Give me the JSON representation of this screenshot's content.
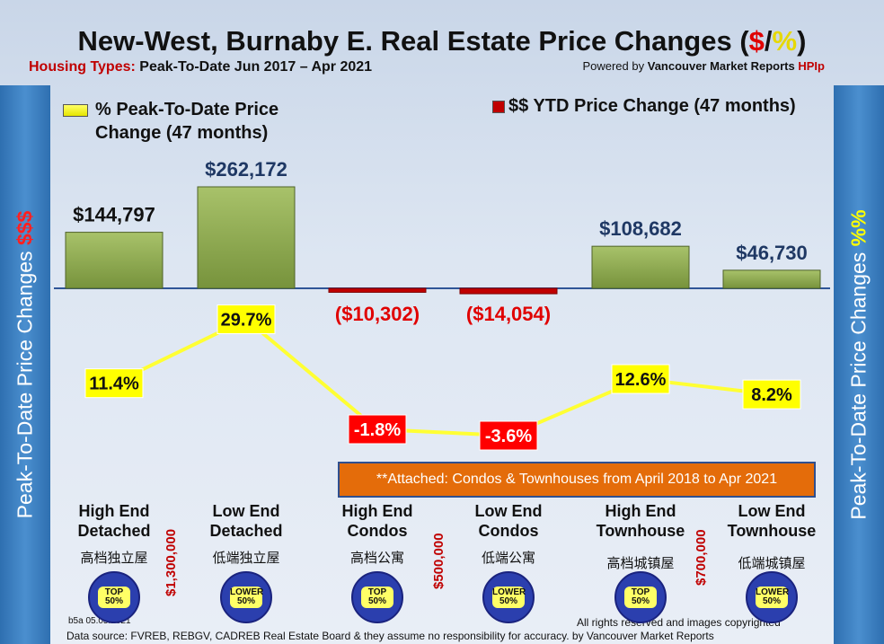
{
  "header": {
    "title_main": "New-West, Burnaby E. Real Estate Price Changes (",
    "title_dollar": "$",
    "title_slash": "/",
    "title_pct": "%",
    "title_end": ")",
    "subtitle_label": "Housing Types:",
    "subtitle_range": "Peak-To-Date Jun 2017 – Apr 2021",
    "powered_prefix": "Powered by",
    "powered_name": "Vancouver Market Reports",
    "powered_hpi": "HPIp"
  },
  "side": {
    "left_text": "Peak-To-Date Price Changes",
    "left_symbol": "$$$",
    "right_text": "Peak-To-Date  Price  Changes",
    "right_symbol": "%%"
  },
  "legend": {
    "pct_line1": "% Peak-To-Date Price",
    "pct_line2": "Change (47 months)",
    "dollar": "$$ YTD Price Change (47 months)"
  },
  "note": "**Attached: Condos & Townhouses from April 2018 to Apr 2021",
  "categories": [
    {
      "line1": "High End",
      "line2": "Detached",
      "zh": "高档独立屋",
      "badge": "TOP 50%"
    },
    {
      "line1": "Low End",
      "line2": "Detached",
      "zh": "低端独立屋",
      "badge": "LOWER 50%"
    },
    {
      "line1": "High End",
      "line2": "Condos",
      "zh": "高档公寓",
      "badge": "TOP 50%"
    },
    {
      "line1": "Low End",
      "line2": "Condos",
      "zh": "低端公寓",
      "badge": "LOWER 50%"
    },
    {
      "line1": "High End",
      "line2": "Townhouse",
      "zh": "高档城镇屋",
      "badge": "TOP 50%"
    },
    {
      "line1": "Low End",
      "line2": "Townhouse",
      "zh": "低端城镇屋",
      "badge": "LOWER 50%"
    }
  ],
  "thresholds": [
    "$1,300,000",
    "$500,000",
    "$700,000"
  ],
  "footer": {
    "code": "b5a 05.05.2021",
    "rights": "All rights reserved and  images copyrighted",
    "source": "Data source: FVREB, REBGV, CADREB Real Estate Board & they assume no responsibility for accuracy. by Vancouver Market Reports"
  },
  "colors": {
    "bar_positive": "#77933c",
    "bar_negative": "#c00000",
    "line": "#ffff33",
    "label_positive_bg": "#ffff00",
    "label_negative_bg": "#ff0000",
    "dollar_positive_text": "#1f3864",
    "dollar_negative_text": "#e00000",
    "side_panel": "#3a7fc1"
  },
  "chart_data": {
    "type": "bar",
    "categories": [
      "High End Detached",
      "Low End Detached",
      "High End Condos",
      "Low End Condos",
      "High End Townhouse",
      "Low End Townhouse"
    ],
    "series": [
      {
        "name": "$$ YTD Price Change (47 months)",
        "type": "bar",
        "values": [
          144797,
          262172,
          -10302,
          -14054,
          108682,
          46730
        ],
        "labels": [
          "$144,797",
          "$262,172",
          "($10,302)",
          "($14,054)",
          "$108,682",
          "$46,730"
        ]
      },
      {
        "name": "% Peak-To-Date Price Change (47 months)",
        "type": "line",
        "values": [
          11.4,
          29.7,
          -1.8,
          -3.6,
          12.6,
          8.2
        ],
        "labels": [
          "11.4%",
          "29.7%",
          "-1.8%",
          "-3.6%",
          "12.6%",
          "8.2%"
        ]
      }
    ]
  }
}
